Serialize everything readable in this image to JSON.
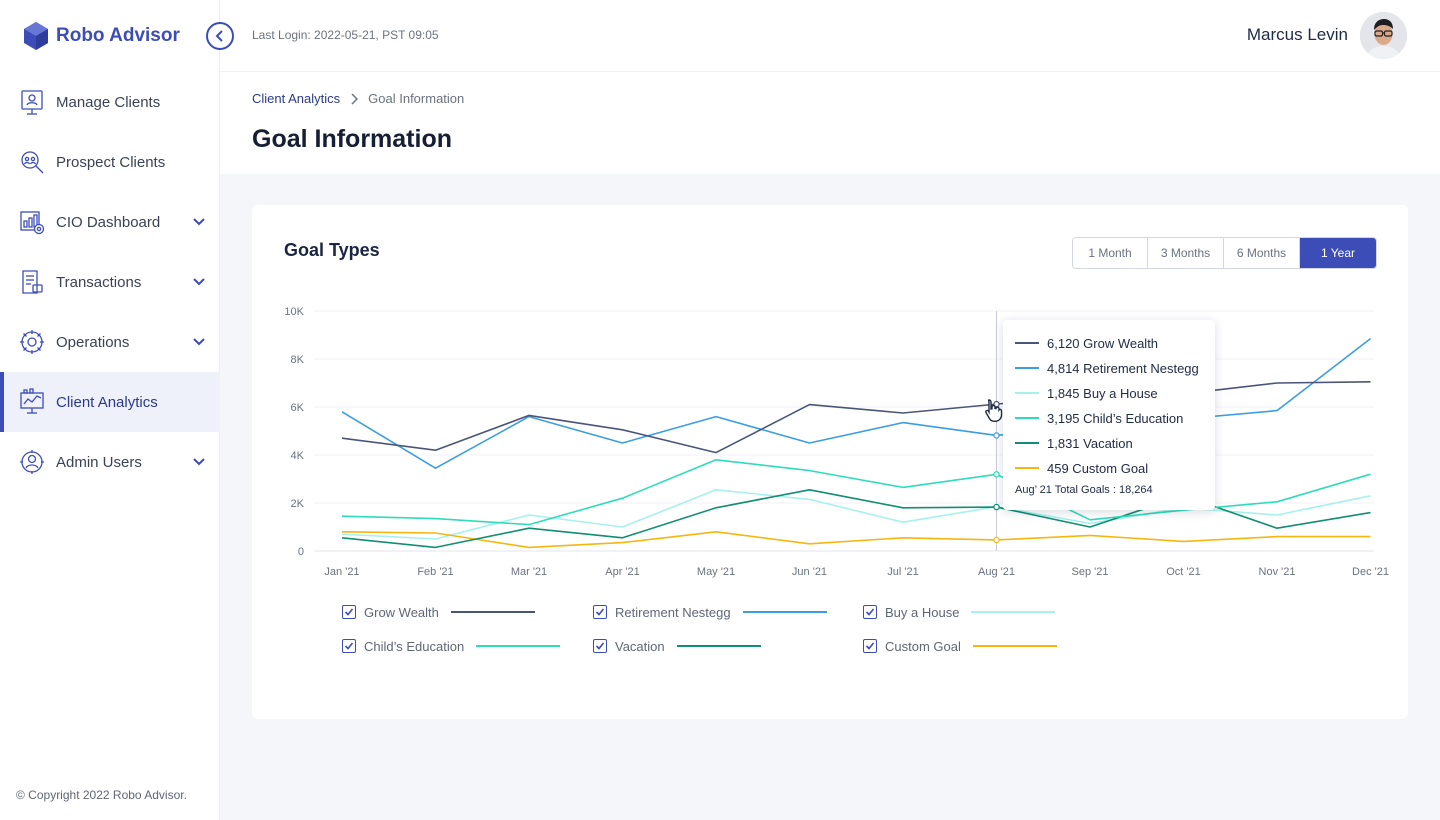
{
  "app": {
    "name": "Robo Advisor",
    "copyright": "© Copyright 2022 Robo Advisor."
  },
  "header": {
    "last_login": "Last Login: 2022-05-21, PST 09:05",
    "user_name": "Marcus Levin"
  },
  "sidebar": {
    "items": [
      {
        "label": "Manage Clients",
        "icon": "manage-clients-icon",
        "has_submenu": false,
        "active": false
      },
      {
        "label": "Prospect Clients",
        "icon": "prospect-clients-icon",
        "has_submenu": false,
        "active": false
      },
      {
        "label": "CIO Dashboard",
        "icon": "cio-dashboard-icon",
        "has_submenu": true,
        "active": false
      },
      {
        "label": "Transactions",
        "icon": "transactions-icon",
        "has_submenu": true,
        "active": false
      },
      {
        "label": "Operations",
        "icon": "operations-icon",
        "has_submenu": true,
        "active": false
      },
      {
        "label": "Client Analytics",
        "icon": "client-analytics-icon",
        "has_submenu": false,
        "active": true
      },
      {
        "label": "Admin Users",
        "icon": "admin-users-icon",
        "has_submenu": true,
        "active": false
      }
    ]
  },
  "breadcrumb": {
    "parent": "Client Analytics",
    "current": "Goal Information"
  },
  "page": {
    "title": "Goal Information"
  },
  "card": {
    "title": "Goal Types",
    "range_tabs": [
      {
        "label": "1 Month",
        "active": false
      },
      {
        "label": "3 Months",
        "active": false
      },
      {
        "label": "6 Months",
        "active": false
      },
      {
        "label": "1 Year",
        "active": true
      }
    ]
  },
  "colors": {
    "accent": "#3d4db7",
    "grow_wealth": "#4a5578",
    "retirement": "#3b9ee0",
    "house": "#a6f1ec",
    "education": "#2fdcb8",
    "vacation": "#128e72",
    "custom": "#f5b60f"
  },
  "chart_data": {
    "type": "line",
    "x": [
      "Jan '21",
      "Feb '21",
      "Mar '21",
      "Apr '21",
      "May '21",
      "Jun '21",
      "Jul '21",
      "Aug '21",
      "Sep '21",
      "Oct '21",
      "Nov '21",
      "Dec '21"
    ],
    "y_ticks": [
      "0",
      "2K",
      "4K",
      "6K",
      "8K",
      "10K"
    ],
    "ylim": [
      0,
      10000
    ],
    "grid": true,
    "series": [
      {
        "name": "Grow Wealth",
        "color": "#4a5578",
        "values": [
          4700,
          4200,
          5650,
          5050,
          4100,
          6100,
          5750,
          6120,
          6500,
          6550,
          7000,
          7050
        ]
      },
      {
        "name": "Retirement Nestegg",
        "color": "#3b9ee0",
        "values": [
          5800,
          3450,
          5600,
          4500,
          5600,
          4500,
          5350,
          4814,
          5250,
          5500,
          5850,
          8850
        ]
      },
      {
        "name": "Buy a House",
        "color": "#a6f1ec",
        "values": [
          700,
          500,
          1500,
          1000,
          2550,
          2150,
          1200,
          1845,
          1150,
          1800,
          1500,
          2300
        ]
      },
      {
        "name": "Child’s Education",
        "color": "#2fdcb8",
        "values": [
          1450,
          1350,
          1100,
          2200,
          3800,
          3350,
          2650,
          3195,
          1300,
          1700,
          2050,
          3200
        ]
      },
      {
        "name": "Vacation",
        "color": "#128e72",
        "values": [
          550,
          150,
          950,
          550,
          1800,
          2550,
          1800,
          1831,
          1000,
          2300,
          950,
          1600
        ]
      },
      {
        "name": "Custom Goal",
        "color": "#f5b60f",
        "values": [
          800,
          750,
          150,
          350,
          800,
          300,
          550,
          459,
          650,
          400,
          600,
          600
        ]
      }
    ],
    "tooltip": {
      "x_index": 7,
      "rows": [
        {
          "text": "6,120 Grow Wealth",
          "color": "#4a5578"
        },
        {
          "text": "4,814 Retirement Nestegg",
          "color": "#3b9ee0"
        },
        {
          "text": "1,845 Buy a House",
          "color": "#a6f1ec"
        },
        {
          "text": "3,195 Child’s Education",
          "color": "#2fdcb8"
        },
        {
          "text": "1,831 Vacation",
          "color": "#128e72"
        },
        {
          "text": "459 Custom Goal",
          "color": "#f5b60f"
        }
      ],
      "total": "Aug’ 21 Total Goals : 18,264"
    }
  }
}
